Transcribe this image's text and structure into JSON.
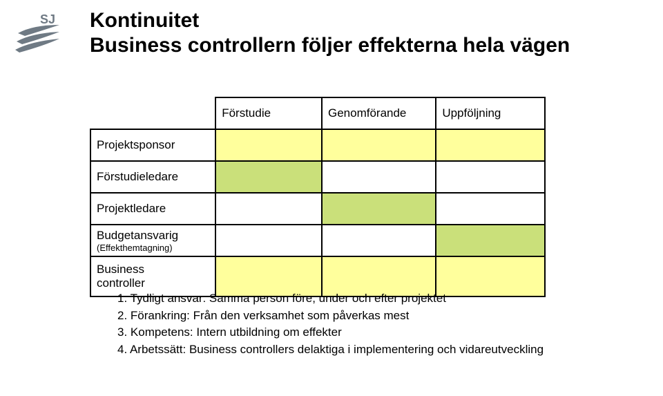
{
  "title_line1": "Kontinuitet",
  "title_line2": "Business controllern följer effekterna hela vägen",
  "table": {
    "headers": [
      "Förstudie",
      "Genomförande",
      "Uppföljning"
    ],
    "rows": [
      {
        "label": "Projektsponsor",
        "sub": "",
        "fills": [
          "#ffff9c",
          "#ffff9c",
          "#ffff9c"
        ]
      },
      {
        "label": "Förstudieledare",
        "sub": "",
        "fills": [
          "#cae07a",
          "#ffffff",
          "#ffffff"
        ]
      },
      {
        "label": "Projektledare",
        "sub": "",
        "fills": [
          "#ffffff",
          "#cae07a",
          "#ffffff"
        ]
      },
      {
        "label": "Budgetansvarig",
        "sub": "(Effekthemtagning)",
        "fills": [
          "#ffffff",
          "#ffffff",
          "#cae07a"
        ]
      },
      {
        "label": "Business controller",
        "sub": "",
        "fills": [
          "#ffff9c",
          "#ffff9c",
          "#ffff9c"
        ],
        "tall": true
      }
    ]
  },
  "list": [
    "1. Tydligt ansvar: Samma person före, under och efter projektet",
    "2. Förankring:  Från den verksamhet som påverkas mest",
    "3. Kompetens: Intern utbildning om effekter",
    "4. Arbetssätt: Business controllers delaktiga i implementering och vidareutveckling"
  ],
  "logo": {
    "text": "SJ",
    "text_color": "#6f7a84",
    "wing_color": "#6f7a84"
  }
}
